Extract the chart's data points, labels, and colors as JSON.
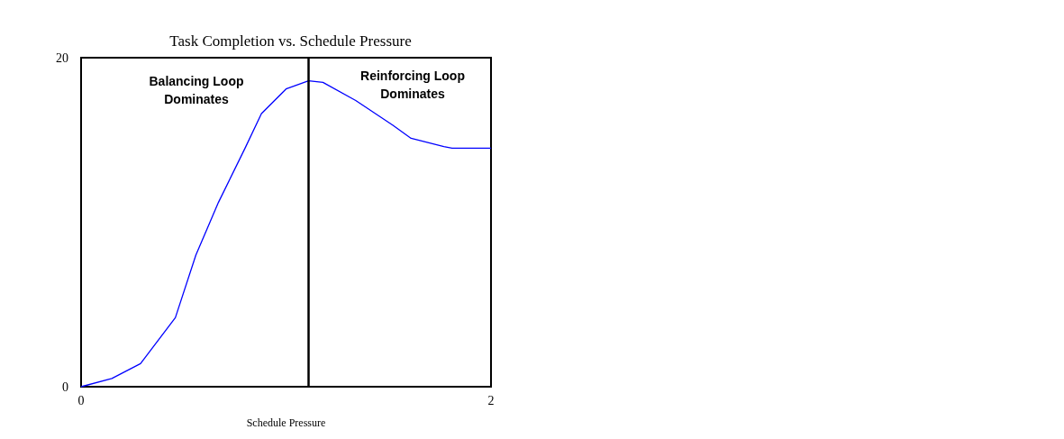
{
  "chart_data": {
    "type": "line",
    "title": "Task Completion vs. Schedule Pressure",
    "xlabel": "Schedule Pressure",
    "x": [
      0,
      0.15,
      0.29,
      0.46,
      0.56,
      0.67,
      0.8,
      0.88,
      1.0,
      1.11,
      1.18,
      1.34,
      1.52,
      1.61,
      1.77,
      1.81,
      2.0
    ],
    "series": [
      {
        "color": "#0000ff",
        "values": [
          0,
          0.5,
          1.4,
          4.2,
          8.0,
          11.2,
          14.5,
          16.6,
          18.1,
          18.6,
          18.5,
          17.4,
          15.9,
          15.1,
          14.6,
          14.5,
          14.5
        ]
      }
    ],
    "xlim": [
      0,
      2
    ],
    "xticks": [
      0,
      2
    ],
    "ylim": [
      0,
      20
    ],
    "yticks": [
      0,
      20
    ],
    "ref_lines": [
      {
        "axis": "x",
        "value": 1.11,
        "color": "#000000"
      }
    ],
    "annotations": [
      "Balancing Loop\nDominates",
      "Reinforcing Loop\nDominates"
    ],
    "grid": false,
    "marker": "none",
    "line_style": "solid"
  }
}
